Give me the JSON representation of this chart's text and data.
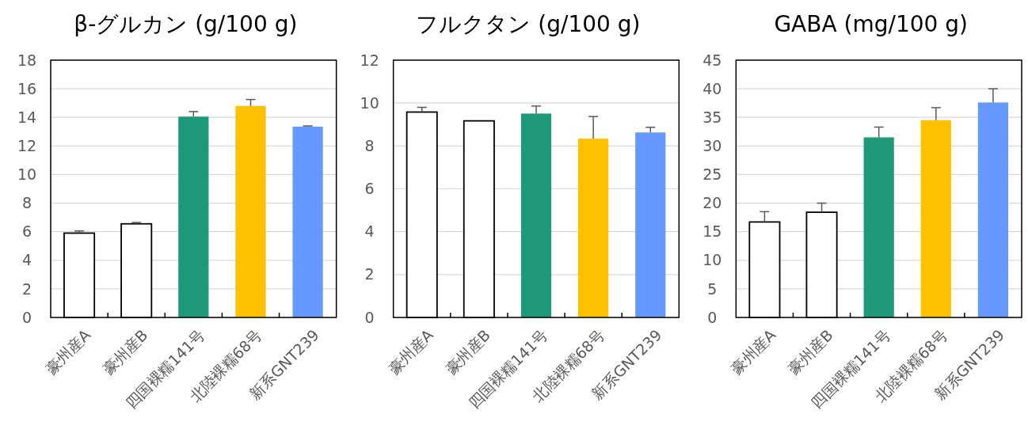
{
  "chart_data": [
    {
      "type": "bar",
      "title": "β-グルカン (g/100 g)",
      "categories": [
        "豪州産A",
        "豪州産B",
        "四国裸糯141号",
        "北陸裸糯68号",
        "新系GNT239"
      ],
      "values": [
        5.9,
        6.55,
        14.05,
        14.8,
        13.35
      ],
      "errors": [
        [
          5.9,
          6.05
        ],
        [
          6.55,
          6.65
        ],
        [
          14.05,
          14.4
        ],
        [
          14.8,
          15.25
        ],
        [
          13.35,
          13.4
        ]
      ],
      "colors": [
        "#ffffff",
        "#ffffff",
        "#1e9a7a",
        "#ffc000",
        "#6699ff"
      ],
      "ylim": [
        0,
        18
      ],
      "yticks": [
        0,
        2,
        4,
        6,
        8,
        10,
        12,
        14,
        16,
        18
      ],
      "grid": "y"
    },
    {
      "type": "bar",
      "title": "フルクタン (g/100 g)",
      "categories": [
        "豪州産A",
        "豪州産B",
        "四国裸糯141号",
        "北陸裸糯68号",
        "新系GNT239"
      ],
      "values": [
        9.58,
        9.17,
        9.51,
        8.34,
        8.63
      ],
      "errors": [
        [
          9.58,
          9.8
        ],
        null,
        [
          9.51,
          9.86
        ],
        [
          8.34,
          9.37
        ],
        [
          8.63,
          8.87
        ]
      ],
      "colors": [
        "#ffffff",
        "#ffffff",
        "#1e9a7a",
        "#ffc000",
        "#6699ff"
      ],
      "ylim": [
        0,
        12
      ],
      "yticks": [
        0,
        2,
        4,
        6,
        8,
        10,
        12
      ],
      "grid": "y"
    },
    {
      "type": "bar",
      "title": "GABA (mg/100 g)",
      "categories": [
        "豪州産A",
        "豪州産B",
        "四国裸糯141号",
        "北陸裸糯68号",
        "新系GNT239"
      ],
      "values": [
        16.7,
        18.4,
        31.5,
        34.5,
        37.6
      ],
      "errors": [
        [
          16.7,
          18.5
        ],
        [
          18.4,
          20
        ],
        [
          31.5,
          33.3
        ],
        [
          34.5,
          36.7
        ],
        [
          37.6,
          40
        ]
      ],
      "colors": [
        "#ffffff",
        "#ffffff",
        "#1e9a7a",
        "#ffc000",
        "#6699ff"
      ],
      "ylim": [
        0,
        45
      ],
      "yticks": [
        0,
        5,
        10,
        15,
        20,
        25,
        30,
        35,
        40,
        45
      ],
      "grid": "y"
    }
  ]
}
